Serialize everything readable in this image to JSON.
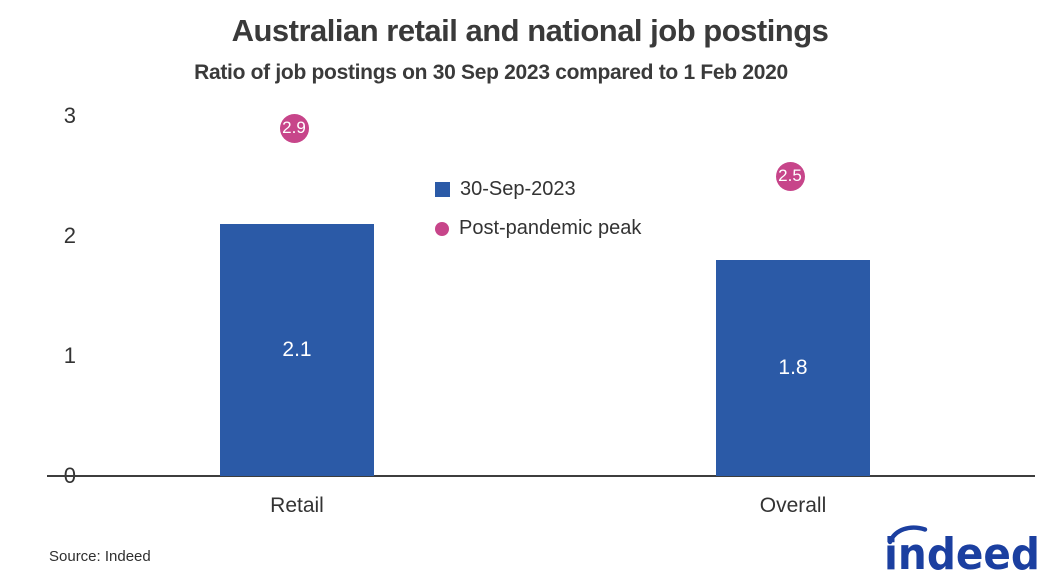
{
  "chart": {
    "title": "Australian retail and national job postings",
    "subtitle": "Ratio of job postings on 30 Sep 2023 compared to 1 Feb 2020",
    "legend": [
      {
        "label": "30-Sep-2023",
        "shape": "square",
        "color": "#2B5AA7"
      },
      {
        "label": "Post-pandemic peak",
        "shape": "circle",
        "color": "#C7458A"
      }
    ]
  },
  "chart_data": {
    "type": "bar",
    "categories": [
      "Retail",
      "Overall"
    ],
    "series": [
      {
        "name": "30-Sep-2023",
        "type": "bar",
        "values": [
          2.1,
          1.8
        ],
        "color": "#2B5AA7",
        "label_color": "#ffffff"
      },
      {
        "name": "Post-pandemic peak",
        "type": "point",
        "values": [
          2.9,
          2.5
        ],
        "color": "#C7458A",
        "label_color": "#ffffff"
      }
    ],
    "title": "Australian retail and national job postings",
    "subtitle": "Ratio of job postings on 30 Sep 2023 compared to 1 Feb 2020",
    "xlabel": "",
    "ylabel": "",
    "yticks": [
      0,
      1,
      2,
      3
    ],
    "ylim": [
      0,
      3
    ],
    "grid": false,
    "legend_position": "upper-center"
  },
  "footer": {
    "source": "Source: Indeed",
    "logo_text": "indeed",
    "logo_color": "#1B3FA0"
  }
}
